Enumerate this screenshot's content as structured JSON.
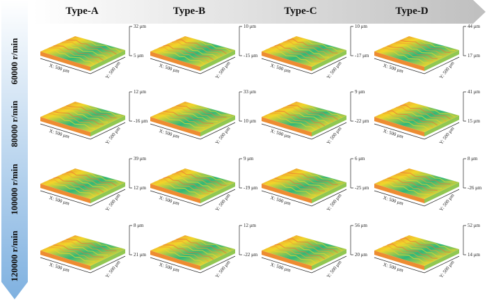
{
  "columns": [
    "Type-A",
    "Type-B",
    "Type-C",
    "Type-D"
  ],
  "rows": [
    "60000 r/min",
    "80000 r/min",
    "100000 r/min",
    "120000 r/min"
  ],
  "cells": [
    [
      {
        "top": "32 μm",
        "bottom": "5 μm",
        "x": "X: 500 μm",
        "y": "Y: 500 μm"
      },
      {
        "top": "10 μm",
        "bottom": "-15 μm",
        "x": "X: 500 μm",
        "y": "Y: 500 μm"
      },
      {
        "top": "10 μm",
        "bottom": "-17 μm",
        "x": "X: 500 μm",
        "y": "Y: 500 μm"
      },
      {
        "top": "44 μm",
        "bottom": "17 μm",
        "x": "X: 500 μm",
        "y": "Y: 500 μm"
      }
    ],
    [
      {
        "top": "12 μm",
        "bottom": "-16 μm",
        "x": "X: 500 μm",
        "y": "Y: 500 μm"
      },
      {
        "top": "33 μm",
        "bottom": "10 μm",
        "x": "X: 500 μm",
        "y": "Y: 500 μm"
      },
      {
        "top": "9 μm",
        "bottom": "-22 μm",
        "x": "X: 500 μm",
        "y": "Y: 500 μm"
      },
      {
        "top": "41 μm",
        "bottom": "15 μm",
        "x": "X: 500 μm",
        "y": "Y: 500 μm"
      }
    ],
    [
      {
        "top": "39 μm",
        "bottom": "12 μm",
        "x": "X: 500 μm",
        "y": "Y: 500 μm"
      },
      {
        "top": "9 μm",
        "bottom": "-19 μm",
        "x": "X: 500 μm",
        "y": "Y: 500 μm"
      },
      {
        "top": "6 μm",
        "bottom": "-25 μm",
        "x": "X: 500 μm",
        "y": "Y: 500 μm"
      },
      {
        "top": "8 μm",
        "bottom": "-26 μm",
        "x": "X: 500 μm",
        "y": "Y: 500 μm"
      }
    ],
    [
      {
        "top": "8 μm",
        "bottom": "21 μm",
        "x": "X: 500 μm",
        "y": "Y: 500 μm"
      },
      {
        "top": "12 μm",
        "bottom": "-22 μm",
        "x": "X: 500 μm",
        "y": "Y: 500 μm"
      },
      {
        "top": "56 μm",
        "bottom": "20 μm",
        "x": "X: 500 μm",
        "y": "Y: 500 μm"
      },
      {
        "top": "52 μm",
        "bottom": "14 μm",
        "x": "X: 500 μm",
        "y": "Y: 500 μm"
      }
    ]
  ],
  "colors": {
    "header_arrow": "#d9d9d9",
    "row_arrow": "#9cc2e5",
    "surface_high": "#e8423a",
    "surface_mid": "#f2d52a",
    "surface_low": "#2fb87a"
  }
}
